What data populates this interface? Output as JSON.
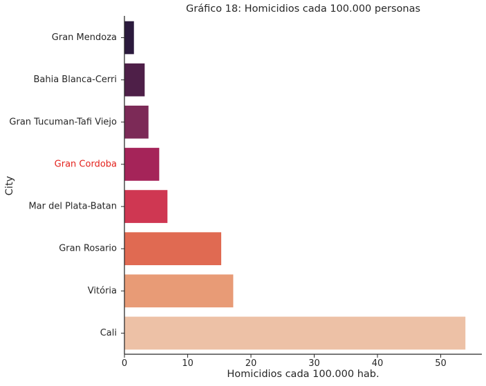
{
  "chart_data": {
    "type": "bar",
    "orientation": "horizontal",
    "title": "Gráfico 18: Homicidios cada 100.000 personas",
    "xlabel": "Homicidios cada 100.000 hab.",
    "ylabel": "City",
    "categories": [
      "Gran Mendoza",
      "Bahia Blanca-Cerri",
      "Gran Tucuman-Tafi Viejo",
      "Gran Cordoba",
      "Mar del Plata-Batan",
      "Gran Rosario",
      "Vitória",
      "Cali"
    ],
    "values": [
      1.5,
      3.2,
      3.8,
      5.5,
      6.8,
      15.3,
      17.2,
      53.9
    ],
    "colors": [
      "#2b1a3d",
      "#4e1f48",
      "#7c2a57",
      "#a52459",
      "#cf3752",
      "#e06a52",
      "#e89b76",
      "#edc1a6"
    ],
    "highlight": {
      "category": "Gran Cordoba",
      "label_color": "#e3201b"
    },
    "xlim": [
      0,
      56.5
    ],
    "xticks": [
      0,
      10,
      20,
      30,
      40,
      50
    ],
    "grid": false
  }
}
